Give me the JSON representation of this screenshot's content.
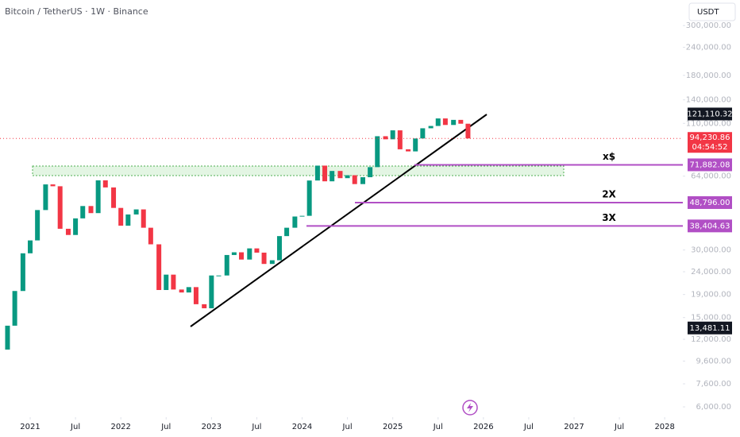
{
  "header": {
    "title": "Bitcoin / TetherUS · 1W · Binance",
    "currency": "USDT"
  },
  "chart_data": {
    "type": "candlestick",
    "log_scale": true,
    "up_color": "#089981",
    "down_color": "#f23645",
    "xlim": [
      2020.667,
      2028.2
    ],
    "ylim": [
      5400,
      390000
    ],
    "xticks": [
      2021,
      {
        "value": 2021.5,
        "label": "Jul"
      },
      2022,
      {
        "value": 2022.5,
        "label": "Jul"
      },
      2023,
      {
        "value": 2023.5,
        "label": "Jul"
      },
      2024,
      {
        "value": 2024.5,
        "label": "Jul"
      },
      2025,
      {
        "value": 2025.5,
        "label": "Jul"
      },
      2026,
      {
        "value": 2026.5,
        "label": "Jul"
      },
      2027,
      {
        "value": 2027.5,
        "label": "Jul"
      },
      2028
    ],
    "yticks": [
      {
        "value": 300000,
        "label": "300,000.00"
      },
      {
        "value": 240000,
        "label": "240,000.00"
      },
      {
        "value": 180000,
        "label": "180,000.00"
      },
      {
        "value": 140000,
        "label": "140,000.00"
      },
      {
        "value": 110000,
        "label": "110,000.00"
      },
      {
        "value": 64000,
        "label": "64,000.00"
      },
      {
        "value": 30000,
        "label": "30,000.00"
      },
      {
        "value": 24000,
        "label": "24,000.00"
      },
      {
        "value": 19000,
        "label": "19,000.00"
      },
      {
        "value": 15000,
        "label": "15,000.00"
      },
      {
        "value": 12000,
        "label": "12,000.00"
      },
      {
        "value": 9600,
        "label": "9,600.00"
      },
      {
        "value": 7600,
        "label": "7,600.00"
      },
      {
        "value": 6000,
        "label": "6,000.00"
      }
    ],
    "x": [
      2020.75,
      2020.83,
      2020.92,
      2021.0,
      2021.08,
      2021.17,
      2021.25,
      2021.33,
      2021.42,
      2021.5,
      2021.58,
      2021.67,
      2021.75,
      2021.83,
      2021.92,
      2022.0,
      2022.08,
      2022.17,
      2022.25,
      2022.33,
      2022.42,
      2022.5,
      2022.58,
      2022.67,
      2022.75,
      2022.83,
      2022.92,
      2023.0,
      2023.08,
      2023.17,
      2023.25,
      2023.33,
      2023.42,
      2023.5,
      2023.58,
      2023.67,
      2023.75,
      2023.83,
      2023.92,
      2024.0,
      2024.08,
      2024.17,
      2024.25,
      2024.33,
      2024.42,
      2024.5,
      2024.58,
      2024.67,
      2024.75,
      2024.83,
      2024.92,
      2025.0,
      2025.08,
      2025.17,
      2025.25,
      2025.33,
      2025.42,
      2025.5,
      2025.58,
      2025.67,
      2025.75,
      2025.83
    ],
    "open": [
      10800,
      13800,
      19700,
      29000,
      33100,
      45200,
      58800,
      57700,
      37300,
      35000,
      41500,
      47100,
      43800,
      61300,
      57000,
      46200,
      38500,
      43200,
      45500,
      37700,
      31800,
      19900,
      23300,
      20000,
      19400,
      20500,
      17200,
      16500,
      23100,
      23100,
      28500,
      29300,
      27200,
      30500,
      29200,
      26000,
      27000,
      34600,
      37700,
      42300,
      42600,
      61200,
      71300,
      60700,
      67500,
      62700,
      64600,
      59000,
      63300,
      70200,
      96400,
      93400,
      102400,
      84300,
      82500,
      94200,
      104600,
      107100,
      115700,
      108200,
      114000,
      109600
    ],
    "close": [
      13800,
      19700,
      29000,
      33100,
      45200,
      58800,
      57700,
      37300,
      35000,
      41500,
      47100,
      43800,
      61300,
      57000,
      46200,
      38500,
      43200,
      45500,
      37700,
      31800,
      19900,
      23300,
      20000,
      19400,
      20500,
      17200,
      16500,
      23100,
      23100,
      28500,
      29300,
      27200,
      30500,
      29200,
      26000,
      27000,
      34600,
      37700,
      42300,
      42600,
      61200,
      71300,
      60700,
      67500,
      62700,
      64600,
      59000,
      63300,
      70200,
      96400,
      93400,
      102400,
      84300,
      82500,
      94200,
      104600,
      107100,
      115700,
      108200,
      114000,
      109600,
      94230.86
    ],
    "price_marks": [
      {
        "value": 121110.32,
        "label": "121,110.32"
      },
      {
        "value": 13481.11,
        "label": "13,481.11"
      }
    ],
    "last_price": {
      "value": 94230.86,
      "label": "94,230.86",
      "timer": "04:54:52"
    },
    "levels": [
      {
        "value": 71882.08,
        "label": "71,882.08",
        "note": "x$"
      },
      {
        "value": 48796,
        "label": "48,796.00",
        "note": "2X"
      },
      {
        "value": 38404.63,
        "label": "38,404.63",
        "note": "3X"
      }
    ],
    "level_color": "#b14fc5"
  }
}
